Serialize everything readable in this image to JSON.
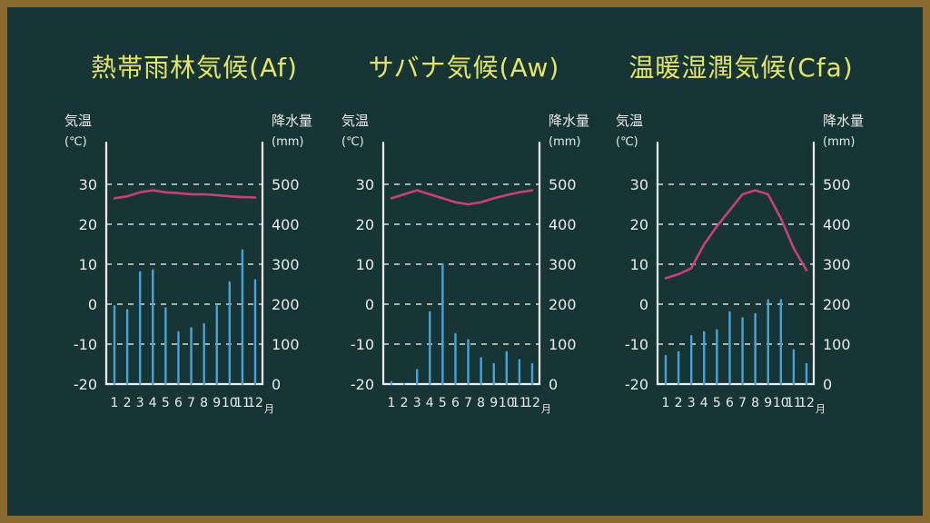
{
  "chart_data": [
    {
      "type": "bar",
      "title": "熱帯雨林気候(Af)",
      "left_label_1": "気温",
      "left_label_2": "(℃)",
      "right_label_1": "降水量",
      "right_label_2": "(mm)",
      "month_suffix": "月",
      "categories": [
        "1",
        "2",
        "3",
        "4",
        "5",
        "6",
        "7",
        "8",
        "9",
        "10",
        "11",
        "12"
      ],
      "temp_ticks": [
        "30",
        "20",
        "10",
        "0",
        "-10",
        "-20"
      ],
      "precip_ticks": [
        "500",
        "400",
        "300",
        "200",
        "100",
        "0"
      ],
      "temp_range": [
        -20,
        30
      ],
      "precip_range": [
        0,
        500
      ],
      "series": [
        {
          "axis": "precipitation",
          "values": [
            195,
            185,
            280,
            285,
            190,
            130,
            140,
            150,
            195,
            255,
            335,
            260
          ]
        },
        {
          "axis": "temperature",
          "values": [
            26.5,
            27,
            28,
            28.5,
            28,
            27.8,
            27.5,
            27.5,
            27.3,
            27,
            26.8,
            26.7
          ]
        }
      ]
    },
    {
      "type": "bar",
      "title": "サバナ気候(Aw)",
      "left_label_1": "気温",
      "left_label_2": "(℃)",
      "right_label_1": "降水量",
      "right_label_2": "(mm)",
      "month_suffix": "月",
      "categories": [
        "1",
        "2",
        "3",
        "4",
        "5",
        "6",
        "7",
        "8",
        "9",
        "10",
        "11",
        "12"
      ],
      "temp_ticks": [
        "30",
        "20",
        "10",
        "0",
        "-10",
        "-20"
      ],
      "precip_ticks": [
        "500",
        "400",
        "300",
        "200",
        "100",
        "0"
      ],
      "temp_range": [
        -20,
        30
      ],
      "precip_range": [
        0,
        500
      ],
      "series": [
        {
          "axis": "precipitation",
          "values": [
            5,
            0,
            35,
            180,
            300,
            125,
            110,
            65,
            50,
            80,
            60,
            50
          ]
        },
        {
          "axis": "temperature",
          "values": [
            26.5,
            27.5,
            28.5,
            27.5,
            26.5,
            25.5,
            25,
            25.5,
            26.5,
            27.3,
            28,
            28.5
          ]
        }
      ]
    },
    {
      "type": "bar",
      "title": "温暖湿潤気候(Cfa)",
      "left_label_1": "気温",
      "left_label_2": "(℃)",
      "right_label_1": "降水量",
      "right_label_2": "(mm)",
      "month_suffix": "月",
      "categories": [
        "1",
        "2",
        "3",
        "4",
        "5",
        "6",
        "7",
        "8",
        "9",
        "10",
        "11",
        "12"
      ],
      "temp_ticks": [
        "30",
        "20",
        "10",
        "0",
        "-10",
        "-20"
      ],
      "precip_ticks": [
        "500",
        "400",
        "300",
        "200",
        "100",
        "0"
      ],
      "temp_range": [
        -20,
        30
      ],
      "precip_range": [
        0,
        500
      ],
      "series": [
        {
          "axis": "precipitation",
          "values": [
            70,
            80,
            120,
            130,
            135,
            180,
            165,
            175,
            210,
            210,
            85,
            50
          ]
        },
        {
          "axis": "temperature",
          "values": [
            6.5,
            7.5,
            9,
            15,
            19.5,
            23.5,
            27.5,
            28.5,
            27.5,
            21.5,
            14,
            8.5
          ]
        }
      ]
    }
  ]
}
